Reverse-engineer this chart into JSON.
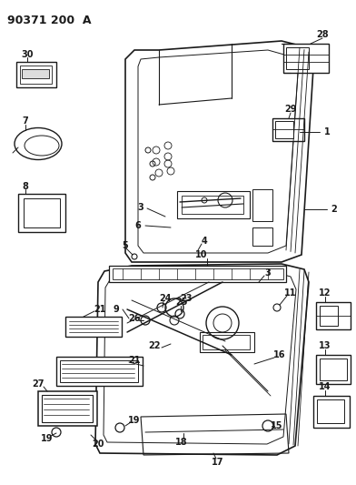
{
  "title": "90371 200  A",
  "bg": "#ffffff",
  "lc": "#1a1a1a",
  "figsize": [
    3.92,
    5.33
  ],
  "dpi": 100
}
